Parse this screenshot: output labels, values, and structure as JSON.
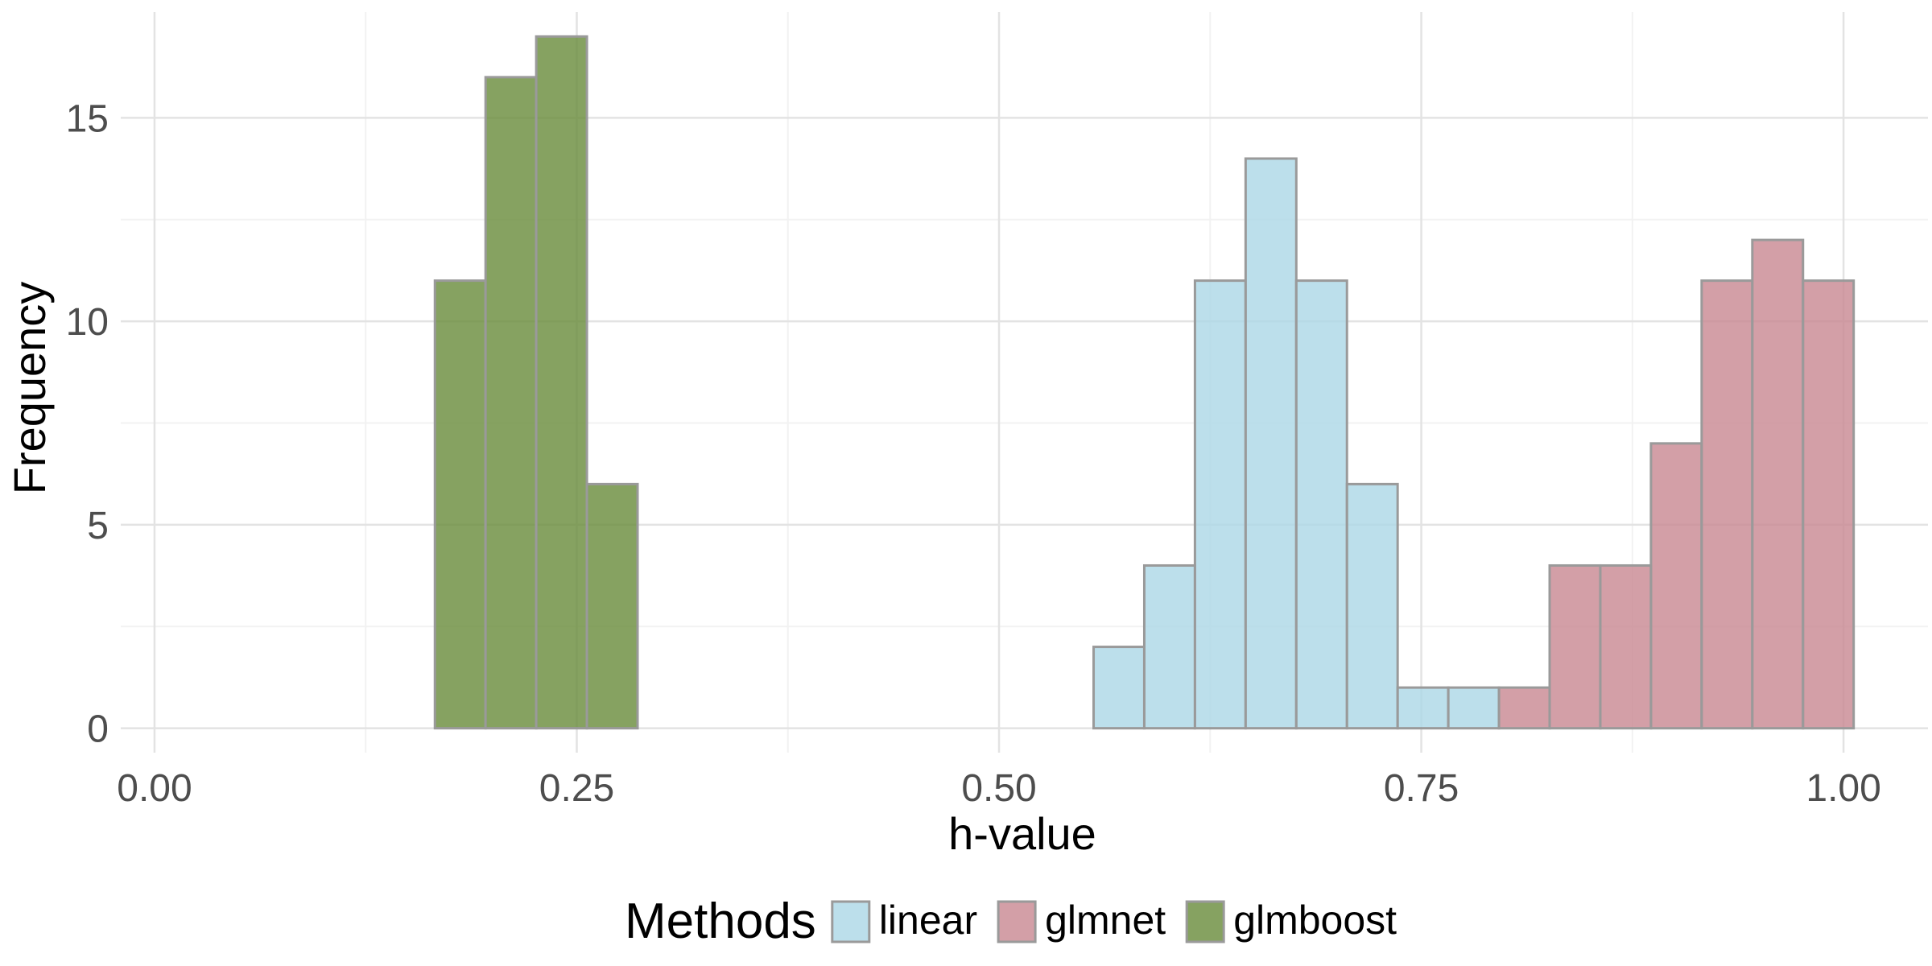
{
  "chart_data": {
    "type": "bar",
    "histogram": true,
    "title": "",
    "xlabel": "h-value",
    "ylabel": "Frequency",
    "xlim": [
      -0.02,
      1.05
    ],
    "ylim": [
      -0.6,
      17.6
    ],
    "x_ticks": [
      0.0,
      0.25,
      0.5,
      0.75,
      1.0
    ],
    "x_tick_labels": [
      "0.00",
      "0.25",
      "0.50",
      "0.75",
      "1.00"
    ],
    "y_ticks": [
      0,
      5,
      10,
      15
    ],
    "y_tick_labels": [
      "0",
      "5",
      "10",
      "15"
    ],
    "grid": true,
    "bin_width": 0.03,
    "bin_edges": [
      0.166,
      0.196,
      0.226,
      0.256,
      0.286,
      0.316,
      0.346,
      0.376,
      0.406,
      0.436,
      0.466,
      0.496,
      0.526,
      0.556,
      0.586,
      0.616,
      0.646,
      0.676,
      0.706,
      0.736,
      0.766,
      0.796,
      0.826,
      0.856,
      0.886,
      0.916,
      0.946,
      0.976,
      1.006
    ],
    "legend": {
      "title": "Methods",
      "position": "bottom"
    },
    "series": [
      {
        "name": "linear",
        "color": "#add8e6",
        "counts": [
          0,
          0,
          0,
          0,
          0,
          0,
          0,
          0,
          0,
          0,
          0,
          0,
          0,
          2,
          4,
          11,
          14,
          11,
          6,
          1,
          1,
          0,
          0,
          0,
          0,
          0,
          0,
          0
        ]
      },
      {
        "name": "glmnet",
        "color": "#c98a94",
        "counts": [
          0,
          0,
          0,
          0,
          0,
          0,
          0,
          0,
          0,
          0,
          0,
          0,
          0,
          0,
          0,
          0,
          0,
          0,
          0,
          0,
          0,
          1,
          4,
          4,
          7,
          11,
          12,
          11
        ]
      },
      {
        "name": "glmboost",
        "color": "#6b8e3e",
        "counts": [
          11,
          16,
          17,
          6,
          0,
          0,
          0,
          0,
          0,
          0,
          0,
          0,
          0,
          0,
          0,
          0,
          0,
          0,
          0,
          0,
          0,
          0,
          0,
          0,
          0,
          0,
          0,
          0
        ]
      }
    ]
  }
}
